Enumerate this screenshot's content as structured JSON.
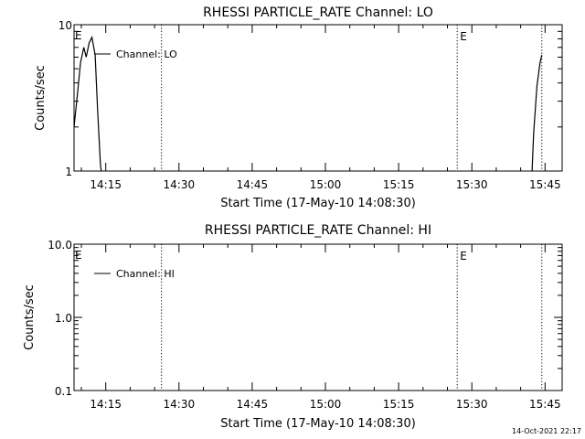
{
  "footer_timestamp": "14-Oct-2021 22:17",
  "chart_data": [
    {
      "type": "line",
      "title": "RHESSI PARTICLE_RATE Channel: LO",
      "xlabel": "Start Time (17-May-10 14:08:30)",
      "ylabel": "Counts/sec",
      "yscale": "log",
      "ylim": [
        1,
        10
      ],
      "y_ticks": [
        1,
        10
      ],
      "y_tick_labels": [
        "1",
        "10"
      ],
      "xlim": [
        "14:08:30",
        "15:48:30"
      ],
      "x_ticks": [
        "14:15",
        "14:30",
        "14:45",
        "15:00",
        "15:15",
        "15:30",
        "15:45"
      ],
      "x_tick_labels": [
        "14:15",
        "14:30",
        "14:45",
        "15:00",
        "15:15",
        "15:30",
        "15:45"
      ],
      "legend": {
        "location": "top-left",
        "entries": [
          "Channel: LO"
        ]
      },
      "event_markers": [
        {
          "time": "14:26:25",
          "label": ""
        },
        {
          "time": "15:27:00",
          "label": "E"
        },
        {
          "time": "15:44:20",
          "label": ""
        }
      ],
      "edge_labels": [
        {
          "time": "14:08:30",
          "label": "E"
        }
      ],
      "series": [
        {
          "name": "Channel: LO",
          "segments": [
            [
              [
                "14:08:30",
                2.0
              ],
              [
                "14:09:10",
                3.3
              ],
              [
                "14:09:50",
                5.5
              ],
              [
                "14:10:30",
                7.0
              ],
              [
                "14:11:00",
                6.0
              ],
              [
                "14:11:35",
                7.5
              ],
              [
                "14:12:10",
                8.2
              ],
              [
                "14:12:50",
                6.2
              ],
              [
                "14:13:20",
                2.6
              ],
              [
                "14:13:55",
                1.1
              ],
              [
                "14:14:05",
                1.0
              ]
            ],
            [
              [
                "15:42:20",
                1.0
              ],
              [
                "15:42:40",
                1.8
              ],
              [
                "15:43:20",
                3.8
              ],
              [
                "15:44:00",
                5.6
              ],
              [
                "15:44:20",
                6.2
              ]
            ]
          ]
        }
      ]
    },
    {
      "type": "line",
      "title": "RHESSI PARTICLE_RATE Channel: HI",
      "xlabel": "Start Time (17-May-10 14:08:30)",
      "ylabel": "Counts/sec",
      "yscale": "log",
      "ylim": [
        0.1,
        10
      ],
      "y_ticks": [
        0.1,
        1,
        10
      ],
      "y_tick_labels": [
        "0.1",
        "1.0",
        "10.0"
      ],
      "xlim": [
        "14:08:30",
        "15:48:30"
      ],
      "x_ticks": [
        "14:15",
        "14:30",
        "14:45",
        "15:00",
        "15:15",
        "15:30",
        "15:45"
      ],
      "x_tick_labels": [
        "14:15",
        "14:30",
        "14:45",
        "15:00",
        "15:15",
        "15:30",
        "15:45"
      ],
      "legend": {
        "location": "top-left",
        "entries": [
          "Channel: HI"
        ]
      },
      "event_markers": [
        {
          "time": "14:26:25",
          "label": ""
        },
        {
          "time": "15:27:00",
          "label": "E"
        },
        {
          "time": "15:44:20",
          "label": ""
        }
      ],
      "edge_labels": [
        {
          "time": "14:08:30",
          "label": "E"
        }
      ],
      "series": [
        {
          "name": "Channel: HI",
          "segments": []
        }
      ]
    }
  ]
}
